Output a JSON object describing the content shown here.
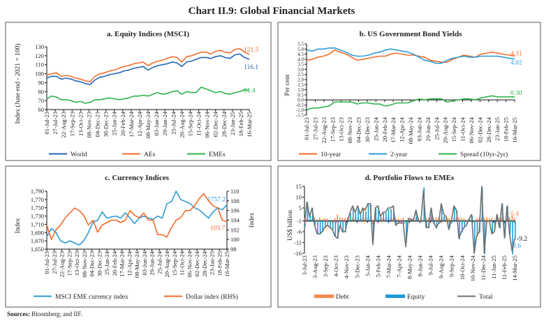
{
  "title": "Chart II.9: Global Financial Markets",
  "sources_label": "Sources:",
  "sources_text": "Bloomberg; and IIF.",
  "chart_data": [
    {
      "id": "a",
      "type": "line",
      "title": "a. Equity Indices (MSCI)",
      "ylabel": "Index (June end - 2021 = 100)",
      "ylim": [
        60,
        130
      ],
      "yticks": [
        "60",
        "70",
        "80",
        "90",
        "100",
        "110",
        "120",
        "130"
      ],
      "xticks": [
        "01-Jul-23",
        "27-Jul-23",
        "22-Aug-23",
        "17-Sep-23",
        "13-Oct-23",
        "08-Nov-23",
        "04-Dec-23",
        "30-Dec-23",
        "25-Jan-24",
        "20-Feb-24",
        "17-Mar-24",
        "12-Apr-24",
        "08-May-24",
        "03-Jun-24",
        "29-Jun-24",
        "25-Jul-24",
        "20-Aug-24",
        "15-Sep-24",
        "11-Oct-24",
        "06-Nov-24",
        "02-Dec-24",
        "28-Dec-24",
        "23-Jan-25",
        "18-Feb-25",
        "16-Mar-25"
      ],
      "grid": false,
      "legend": "bottom",
      "series": [
        {
          "name": "World",
          "color": "#2366b5",
          "end_label": "116.1",
          "values": [
            95,
            97,
            97,
            94,
            95,
            94,
            92,
            91,
            89,
            88,
            93,
            96,
            97,
            99,
            100,
            101,
            103,
            104,
            106,
            107,
            108,
            104,
            107,
            109,
            110,
            111,
            113,
            112,
            108,
            113,
            114,
            116,
            118,
            118,
            117,
            119,
            120,
            118,
            117,
            121,
            122,
            118,
            116.1
          ]
        },
        {
          "name": "AEs",
          "color": "#f26b2a",
          "end_label": "121.5",
          "values": [
            98,
            100,
            101,
            97,
            98,
            97,
            95,
            94,
            92,
            91,
            97,
            100,
            101,
            103,
            104,
            106,
            108,
            109,
            111,
            112,
            113,
            109,
            112,
            114,
            115,
            117,
            119,
            118,
            113,
            119,
            120,
            122,
            124,
            124,
            122,
            125,
            126,
            124,
            123,
            127,
            128,
            124,
            121.5
          ]
        },
        {
          "name": "EMEs",
          "color": "#2db34a",
          "end_label": "81.4",
          "values": [
            72,
            75,
            74,
            71,
            71,
            70,
            68,
            69,
            67,
            68,
            71,
            71,
            72,
            73,
            72,
            71,
            72,
            73,
            75,
            75,
            76,
            75,
            77,
            79,
            77,
            78,
            80,
            81,
            77,
            80,
            79,
            79,
            85,
            83,
            81,
            79,
            80,
            78,
            77,
            79,
            80,
            82,
            81.4
          ]
        }
      ]
    },
    {
      "id": "b",
      "type": "line",
      "title": "b. US Government Bond Yields",
      "ylabel": "Per cent",
      "ylim": [
        -1.5,
        5.5
      ],
      "yticks": [
        "-1.5",
        "-1.0",
        "-0.5",
        "0.0",
        "0.5",
        "1.0",
        "1.5",
        "2.0",
        "2.5",
        "3.0",
        "3.5",
        "4.0",
        "4.5",
        "5.0",
        "5.5"
      ],
      "xticks": [
        "01-Jul-23",
        "27-Jul-23",
        "22-Aug-23",
        "17-Sep-23",
        "13-Oct-23",
        "08-Nov-23",
        "04-Dec-23",
        "30-Dec-23",
        "25-Jan-24",
        "20-Feb-24",
        "17-Mar-24",
        "12-Apr-24",
        "08-May-24",
        "03-Jun-24",
        "29-Jun-24",
        "25-Jul-24",
        "20-Aug-24",
        "15-Sep-24",
        "11-Oct-24",
        "06-Nov-24",
        "02-Dec-24",
        "28-Dec-24",
        "23-Jan-25",
        "18-Feb-25",
        "16-Mar-25"
      ],
      "grid": false,
      "legend": "bottom",
      "series": [
        {
          "name": "10-year",
          "color": "#f26b2a",
          "end_label": "4.31",
          "values": [
            3.9,
            4.0,
            4.2,
            4.3,
            4.5,
            4.9,
            4.7,
            4.5,
            4.2,
            3.9,
            4.0,
            4.1,
            4.2,
            4.3,
            4.3,
            4.5,
            4.6,
            4.5,
            4.4,
            4.4,
            4.3,
            4.2,
            3.9,
            3.8,
            3.7,
            3.7,
            4.0,
            4.2,
            4.4,
            4.3,
            4.2,
            4.5,
            4.6,
            4.7,
            4.6,
            4.5,
            4.4,
            4.31
          ]
        },
        {
          "name": "2-year",
          "color": "#2e9bd6",
          "end_label": "4.02",
          "values": [
            4.9,
            4.8,
            5.0,
            5.0,
            5.1,
            5.1,
            4.9,
            4.7,
            4.4,
            4.3,
            4.3,
            4.4,
            4.6,
            4.7,
            4.9,
            5.0,
            4.9,
            4.8,
            4.7,
            4.5,
            4.2,
            3.9,
            3.8,
            3.6,
            3.6,
            3.9,
            4.1,
            4.2,
            4.3,
            4.2,
            4.2,
            4.3,
            4.3,
            4.3,
            4.3,
            4.2,
            4.1,
            4.02
          ]
        },
        {
          "name": "Spread (10yr-2yr)",
          "color": "#2db34a",
          "end_label": "0.30",
          "values": [
            -1.0,
            -0.8,
            -0.8,
            -0.7,
            -0.6,
            -0.2,
            -0.2,
            -0.2,
            -0.2,
            -0.4,
            -0.3,
            -0.3,
            -0.4,
            -0.4,
            -0.6,
            -0.5,
            -0.3,
            -0.3,
            -0.3,
            -0.1,
            0.1,
            0.0,
            0.1,
            0.1,
            0.1,
            -0.2,
            -0.1,
            0.0,
            0.1,
            0.1,
            0.0,
            0.2,
            0.3,
            0.4,
            0.3,
            0.3,
            0.3,
            0.3
          ]
        }
      ]
    },
    {
      "id": "c",
      "type": "line",
      "title": "c. Currency Indices",
      "ylabel": "Index",
      "ylabel_right": "Index",
      "ylim": [
        1650,
        1790
      ],
      "ylim_right": [
        98,
        110
      ],
      "yticks": [
        "1,650",
        "1,670",
        "1,690",
        "1,710",
        "1,730",
        "1,750",
        "1,770",
        "1,790"
      ],
      "yticks_right": [
        "98",
        "100",
        "102",
        "104",
        "106",
        "108",
        "110"
      ],
      "xticks": [
        "01-Jul-23",
        "27-Jul-23",
        "22-Aug-23",
        "17-Sep-23",
        "13-Oct-23",
        "08-Nov-23",
        "04-Dec-23",
        "30-Dec-23",
        "25-Jan-24",
        "20-Feb-24",
        "17-Mar-24",
        "12-Apr-24",
        "08-May-24",
        "03-Jun-24",
        "29-Jun-24",
        "25-Jul-24",
        "20-Aug-24",
        "15-Sep-24",
        "11-Oct-24",
        "06-Nov-24",
        "02-Dec-24",
        "28-Dec-24",
        "23-Jan-25",
        "18-Feb-25",
        "16-Mar-25"
      ],
      "grid": false,
      "legend": "bottom",
      "series": [
        {
          "name": "MSCI EME currency index",
          "color": "#2e9bd6",
          "axis": "left",
          "end_label": "1757.2",
          "values": [
            1680,
            1700,
            1690,
            1670,
            1665,
            1670,
            1665,
            1660,
            1670,
            1690,
            1715,
            1720,
            1740,
            1725,
            1728,
            1730,
            1725,
            1738,
            1725,
            1712,
            1725,
            1730,
            1725,
            1722,
            1730,
            1725,
            1760,
            1765,
            1790,
            1770,
            1765,
            1760,
            1750,
            1745,
            1735,
            1725,
            1740,
            1750,
            1745,
            1757.2
          ]
        },
        {
          "name": "Dollar index (RHS)",
          "color": "#f26b2a",
          "axis": "right",
          "end_label": "103.7",
          "values": [
            103,
            100,
            102,
            103,
            104.5,
            105.5,
            106.5,
            106,
            105,
            103,
            104,
            101.5,
            103,
            103.5,
            104,
            104,
            103.5,
            104,
            106,
            105,
            104.5,
            105.5,
            104,
            104,
            101,
            101,
            100.5,
            102.5,
            104,
            104.5,
            106,
            106,
            107,
            108.5,
            109.5,
            108,
            107,
            106.5,
            104,
            103.7
          ]
        }
      ]
    },
    {
      "id": "d",
      "type": "bar",
      "title": "d. Portfolio Flows to EMEs",
      "ylabel": "US$ billion",
      "ylim": [
        -16,
        15
      ],
      "yticks": [
        "-16",
        "-11",
        "-6",
        "-1",
        "5",
        "10",
        "15"
      ],
      "xticks": [
        "3-Jul-23",
        "3-Aug-23",
        "3-Sep-23",
        "4-Oct-23",
        "4-Nov-23",
        "5-Dec-23",
        "5-Jan-24",
        "5-Feb-24",
        "7-Mar-24",
        "7-Apr-24",
        "8-May-24",
        "8-Jun-24",
        "9-Jul-24",
        "9-Aug-24",
        "9-Sep-24",
        "10-Oct-24",
        "10-Nov-24",
        "11-Dec-24",
        "11-Jan-25",
        "11-Feb-25",
        "14-Mar-25"
      ],
      "grid": false,
      "legend": "bottom",
      "series": [
        {
          "name": "Debt",
          "color": "#f28a50",
          "kind": "bar",
          "end_label": "0.4",
          "values": [
            0.5,
            0.3,
            -0.5,
            0.2,
            0.4,
            -0.3,
            0.5,
            -0.2,
            0.3,
            0.2,
            -0.4,
            -2,
            0.3,
            2,
            0.5,
            0.4,
            0.3,
            0.6,
            0.5,
            0.4,
            0.3,
            0.5,
            0.2,
            0.4,
            0.6,
            0.5,
            0.4,
            -2.5,
            0.3,
            0.5,
            0.2,
            0.4,
            0.3,
            0.6,
            0.5,
            0.4,
            0.3,
            0.2,
            -0.3,
            0.4,
            -2,
            0.5,
            0.3,
            0.2,
            0.4,
            0.6,
            0.5,
            -1.5,
            0.4,
            0.3,
            0.5,
            0.2,
            0.6,
            0.3,
            0.5,
            0.7,
            0.4,
            0.3,
            -0.5,
            0.6,
            0.4,
            0.5,
            0.3,
            0.2,
            -0.4,
            0.3,
            0.5,
            -0.6,
            0.2,
            0.4,
            0.6,
            0.3,
            0.5,
            0.2,
            0.4,
            -1,
            0.3,
            0.5,
            0.4,
            -0.8,
            0.3,
            0.5,
            1.5,
            0.4
          ]
        },
        {
          "name": "Equity",
          "color": "#1f9ad6",
          "kind": "bar",
          "end_label": "-9.6",
          "values": [
            -3.5,
            7.5,
            1.5,
            4.8,
            -3.2,
            -7.1,
            -7.3,
            -6.2,
            -4.3,
            -3.2,
            -4.4,
            -5.3,
            -8.4,
            -9.2,
            -3.5,
            -6.4,
            -6.3,
            -1.5,
            2.6,
            5.4,
            2.8,
            5.6,
            1.8,
            4.6,
            3.4,
            6.5,
            6.6,
            -9.5,
            4.7,
            5.5,
            0.8,
            2.6,
            2.7,
            4.4,
            4.5,
            5.6,
            -3.3,
            -2.2,
            -1.7,
            -2.4,
            -11,
            -0.5,
            -0.3,
            -1.2,
            3.6,
            -1.6,
            -1.5,
            14.5,
            -4.4,
            -4.3,
            4.5,
            -2.2,
            -4.6,
            -2.3,
            6.5,
            1.3,
            0.6,
            -4.7,
            -1.6,
            5.4,
            3.6,
            -9.5,
            -6.3,
            -4.2,
            -2.6,
            -0.3,
            1.5,
            -15.4,
            -8.2,
            -6.4,
            14.4,
            -16.3,
            -1.5,
            -1.2,
            -6.6,
            -5,
            1.7,
            -4.5,
            6.6,
            -8.2,
            5.7,
            -7.5,
            -16.5,
            -9.6
          ]
        },
        {
          "name": "Total",
          "color": "#6f6f6f",
          "kind": "line",
          "end_label": "-9.2",
          "values": [
            -3,
            7.8,
            1,
            5,
            -3,
            -7,
            -7,
            -6,
            -4,
            -3,
            -4,
            -5,
            -8,
            -9,
            -3,
            -6,
            -6,
            -1,
            3,
            6,
            3,
            6,
            2,
            5,
            4,
            7,
            7,
            -12,
            5,
            6,
            1,
            3,
            3,
            5,
            5,
            6,
            -3,
            -2,
            -2,
            -2,
            -13,
            0,
            0,
            -1,
            4,
            -1,
            -1,
            13,
            -4,
            -4,
            5,
            -2,
            -4,
            -2,
            7,
            2,
            1,
            -5,
            -1,
            6,
            4,
            -9,
            -6,
            -4,
            -3,
            0,
            2,
            -16,
            -8,
            -6,
            15,
            -16,
            -1,
            -1,
            -7,
            -6,
            2,
            -4,
            7,
            -9,
            6,
            -7,
            -15,
            -9.2
          ]
        }
      ]
    }
  ]
}
